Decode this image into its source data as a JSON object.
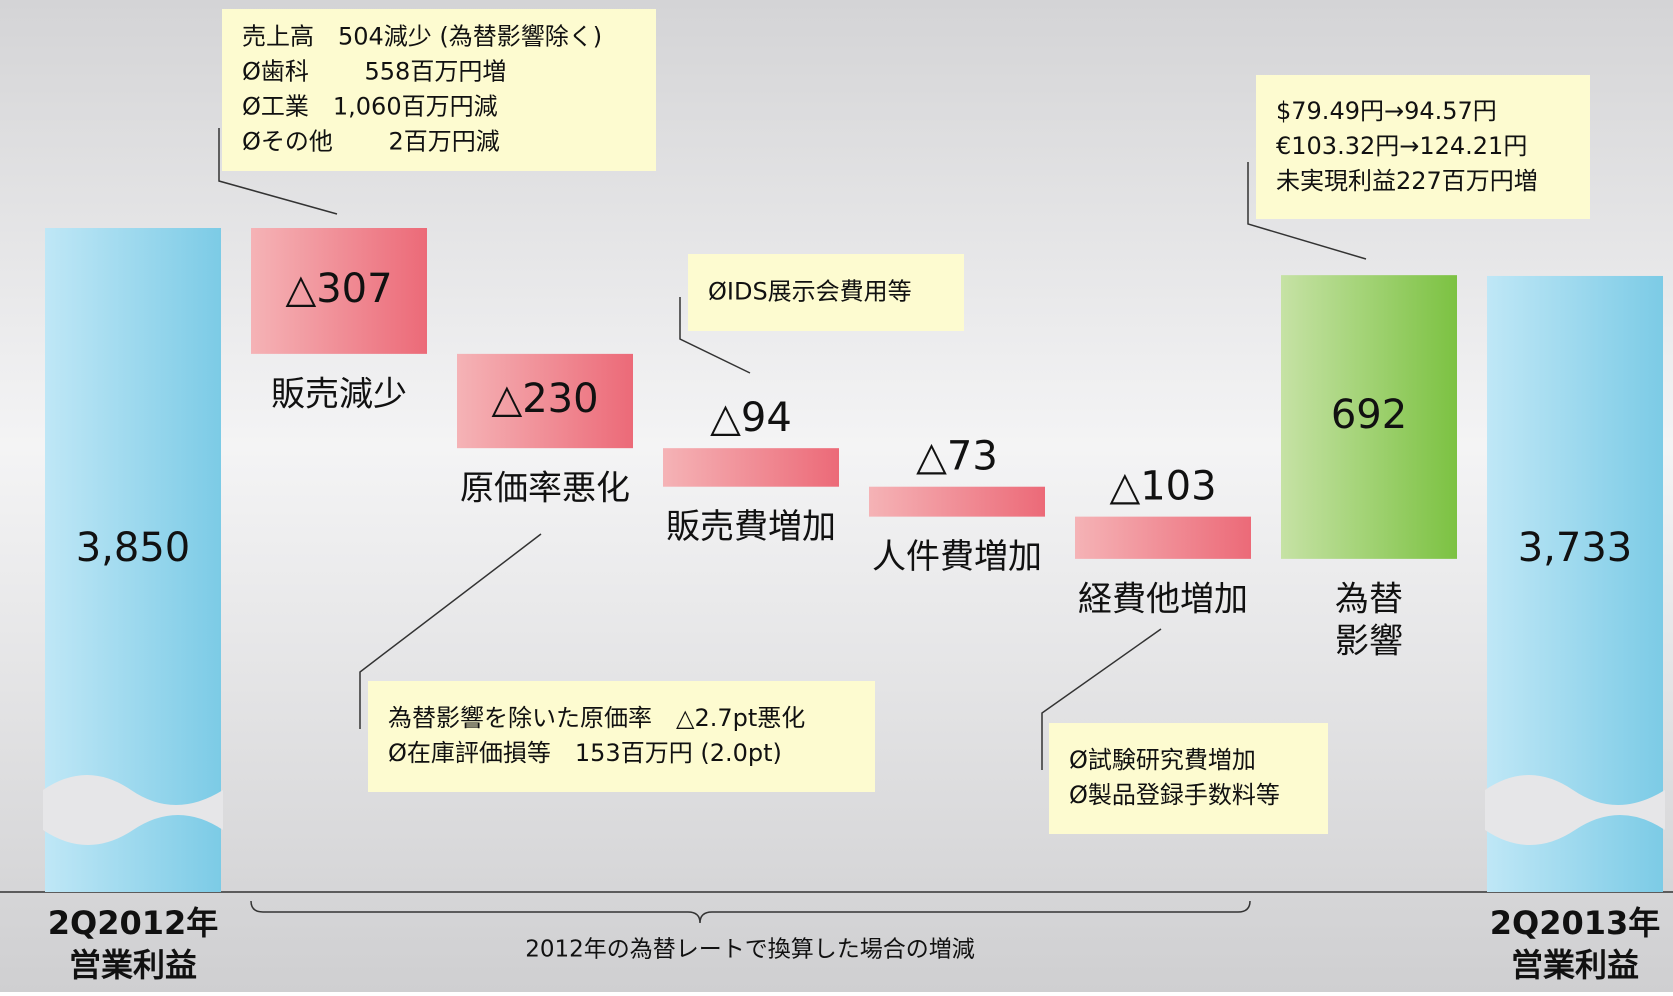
{
  "chart_data": {
    "type": "waterfall",
    "categories": [
      [
        "2Q2012年",
        "営業利益"
      ],
      "販売減少",
      "原価率悪化",
      "販売費増加",
      "人件費増加",
      "経費他増加",
      [
        "為替",
        "影響"
      ],
      [
        "2Q2013年",
        "営業利益"
      ]
    ],
    "values": [
      3850,
      -307,
      -230,
      -94,
      -73,
      -103,
      692,
      3733
    ],
    "value_labels": [
      "3,850",
      "△307",
      "△230",
      "△94",
      "△73",
      "△103",
      "692",
      "3,733"
    ],
    "measures": [
      "total",
      "relative",
      "relative",
      "relative",
      "relative",
      "relative",
      "relative",
      "total"
    ],
    "colors": {
      "total": "#7ccbe6",
      "decrease": "#ec6a78",
      "increase": "#7cc242"
    },
    "annotations": [
      {
        "lines": [
          "売上高　504減少 (為替影響除く)",
          "Ø歯科　　  558百万円増",
          "Ø工業　1,060百万円減",
          "Øその他　　  2百万円減"
        ]
      },
      {
        "lines": [
          "ØIDS展示会費用等"
        ]
      },
      {
        "lines": [
          "為替影響を除いた原価率　△2.7pt悪化",
          "Ø在庫評価損等　153百万円 (2.0pt)"
        ]
      },
      {
        "lines": [
          "Ø試験研究費増加",
          "Ø製品登録手数料等"
        ]
      },
      {
        "lines": [
          "$79.49円→94.57円",
          "€103.32円→124.21円",
          "未実現利益227百万円増"
        ]
      }
    ],
    "footnote": "2012年の為替レートで換算した場合の増減"
  }
}
